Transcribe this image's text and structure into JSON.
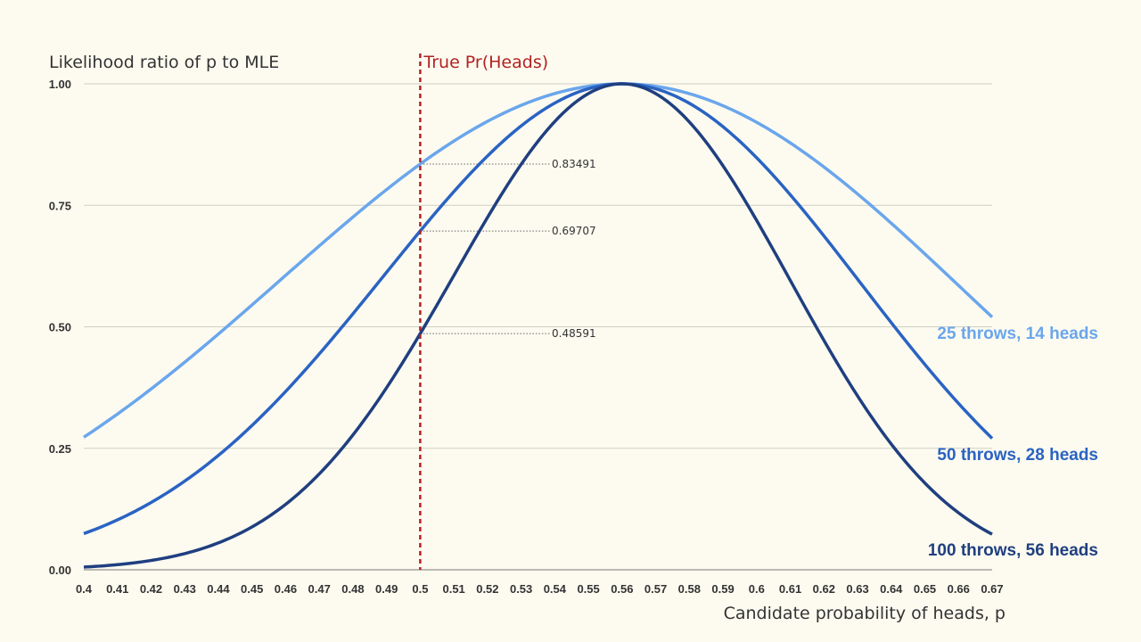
{
  "chart_data": {
    "type": "line",
    "title": "",
    "ylabel": "Likelihood ratio of p to MLE",
    "xlabel": "Candidate probability of heads, p",
    "xlim": [
      0.4,
      0.67
    ],
    "ylim": [
      0,
      1
    ],
    "grid": true,
    "x_ticks": [
      "0.4",
      "0.41",
      "0.42",
      "0.43",
      "0.44",
      "0.45",
      "0.46",
      "0.47",
      "0.48",
      "0.49",
      "0.5",
      "0.51",
      "0.52",
      "0.53",
      "0.54",
      "0.55",
      "0.56",
      "0.57",
      "0.58",
      "0.59",
      "0.6",
      "0.61",
      "0.62",
      "0.63",
      "0.64",
      "0.65",
      "0.66",
      "0.67"
    ],
    "y_ticks": [
      "0.00",
      "0.25",
      "0.50",
      "0.75",
      "1.00"
    ],
    "vertical_marker": {
      "x": 0.5,
      "label": "True Pr(Heads)",
      "color": "#b22222"
    },
    "series": [
      {
        "name": "25 throws, 14 heads",
        "n": 25,
        "k": 14,
        "color": "#6aa6ec",
        "value_at_marker": "0.83491",
        "x": [
          0.4,
          0.42,
          0.44,
          0.46,
          0.48,
          0.5,
          0.52,
          0.54,
          0.56,
          0.58,
          0.6,
          0.62,
          0.64,
          0.66,
          0.67
        ],
        "values": [
          0.274,
          0.378,
          0.494,
          0.617,
          0.735,
          0.835,
          0.933,
          0.985,
          1.0,
          0.985,
          0.934,
          0.851,
          0.742,
          0.618,
          0.523
        ]
      },
      {
        "name": "50 throws, 28 heads",
        "n": 50,
        "k": 28,
        "color": "#2a63c3",
        "value_at_marker": "0.69707",
        "x": [
          0.4,
          0.42,
          0.44,
          0.46,
          0.48,
          0.5,
          0.52,
          0.54,
          0.56,
          0.58,
          0.6,
          0.62,
          0.64,
          0.66,
          0.67
        ],
        "values": [
          0.075,
          0.143,
          0.244,
          0.381,
          0.54,
          0.697,
          0.842,
          0.961,
          1.0,
          0.968,
          0.873,
          0.724,
          0.551,
          0.382,
          0.273
        ]
      },
      {
        "name": "100 throws, 56 heads",
        "n": 100,
        "k": 56,
        "color": "#1f3f80",
        "value_at_marker": "0.48591",
        "x": [
          0.4,
          0.42,
          0.44,
          0.46,
          0.48,
          0.5,
          0.52,
          0.54,
          0.56,
          0.58,
          0.6,
          0.62,
          0.64,
          0.66,
          0.67
        ],
        "values": [
          0.006,
          0.02,
          0.059,
          0.145,
          0.292,
          0.486,
          0.708,
          0.923,
          1.0,
          0.937,
          0.762,
          0.524,
          0.304,
          0.146,
          0.075
        ]
      }
    ]
  }
}
